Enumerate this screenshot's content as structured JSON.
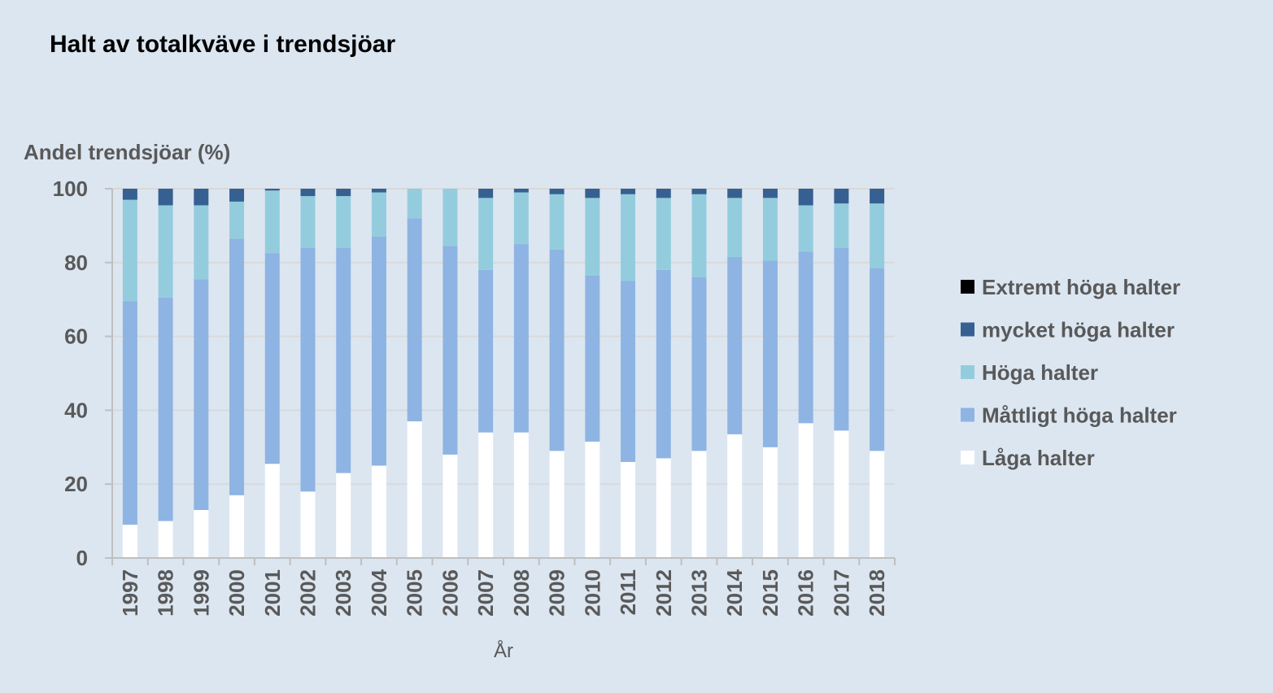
{
  "chart_data": {
    "type": "bar",
    "stacked": true,
    "title": "Halt av totalkväve i trendsjöar",
    "ylabel": "Andel trendsjöar (%)",
    "xlabel": "År",
    "ylim": [
      0,
      100
    ],
    "yticks": [
      0,
      20,
      40,
      60,
      80,
      100
    ],
    "grid": true,
    "legend_position": "right",
    "categories": [
      "1997",
      "1998",
      "1999",
      "2000",
      "2001",
      "2002",
      "2003",
      "2004",
      "2005",
      "2006",
      "2007",
      "2008",
      "2009",
      "2010",
      "2011",
      "2012",
      "2013",
      "2014",
      "2015",
      "2016",
      "2017",
      "2018"
    ],
    "series": [
      {
        "name": "Låga halter",
        "color": "#ffffff",
        "values": [
          9,
          10,
          13,
          17,
          25.5,
          18,
          23,
          25,
          37,
          28,
          34,
          34,
          29,
          31.5,
          26,
          27,
          29,
          33.5,
          30,
          36.5,
          34.5,
          29
        ]
      },
      {
        "name": "Måttligt höga halter",
        "color": "#8eb4e3",
        "values": [
          60.5,
          60.5,
          62.5,
          69.5,
          57,
          66,
          61,
          62,
          55,
          56.5,
          44,
          51,
          54.5,
          45,
          49,
          51,
          47,
          48,
          50.5,
          46.5,
          49.5,
          49.5
        ]
      },
      {
        "name": "Höga halter",
        "color": "#93cddd",
        "values": [
          27.5,
          25,
          20,
          10,
          17,
          14,
          14,
          12,
          8,
          15.5,
          19.5,
          14,
          15,
          21,
          23.5,
          19.5,
          22.5,
          16,
          17,
          12.5,
          12,
          17.5
        ]
      },
      {
        "name": "mycket höga halter",
        "color": "#376092",
        "values": [
          3,
          4.5,
          4.5,
          3.5,
          0.5,
          2,
          2,
          1,
          0,
          0,
          2.5,
          1,
          1.5,
          2.5,
          1.5,
          2.5,
          1.5,
          2.5,
          2.5,
          4.5,
          4,
          4
        ]
      },
      {
        "name": "Extremt höga halter",
        "color": "#000000",
        "values": [
          0,
          0,
          0,
          0,
          0,
          0,
          0,
          0,
          0,
          0,
          0,
          0,
          0,
          0,
          0,
          0,
          0,
          0,
          0,
          0,
          0,
          0
        ]
      }
    ],
    "legend_order": [
      "Extremt höga halter",
      "mycket höga halter",
      "Höga halter",
      "Måttligt höga halter",
      "Låga halter"
    ],
    "axis_color": "#bfbfbf",
    "grid_color": "#d9d9d9"
  }
}
